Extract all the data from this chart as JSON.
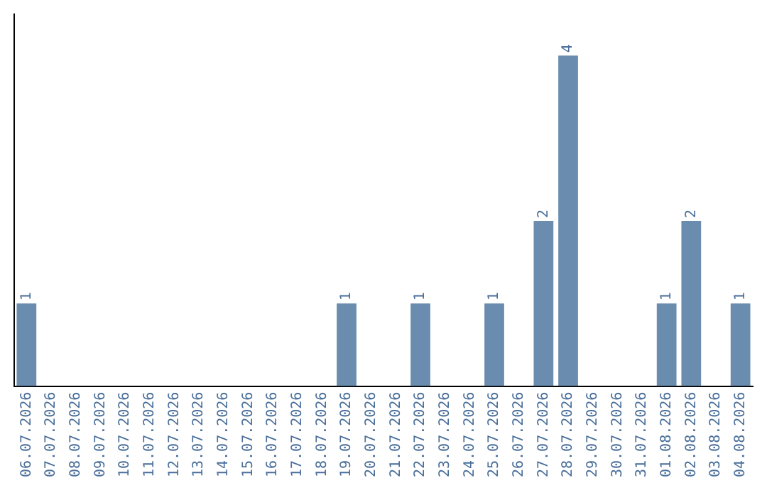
{
  "chart_data": {
    "type": "bar",
    "categories": [
      "06.07.2026",
      "07.07.2026",
      "08.07.2026",
      "09.07.2026",
      "10.07.2026",
      "11.07.2026",
      "12.07.2026",
      "13.07.2026",
      "14.07.2026",
      "15.07.2026",
      "16.07.2026",
      "17.07.2026",
      "18.07.2026",
      "19.07.2026",
      "20.07.2026",
      "21.07.2026",
      "22.07.2026",
      "23.07.2026",
      "24.07.2026",
      "25.07.2026",
      "26.07.2026",
      "27.07.2026",
      "28.07.2026",
      "29.07.2026",
      "30.07.2026",
      "31.07.2026",
      "01.08.2026",
      "02.08.2026",
      "03.08.2026",
      "04.08.2026"
    ],
    "values": [
      1,
      0,
      0,
      0,
      0,
      0,
      0,
      0,
      0,
      0,
      0,
      0,
      0,
      1,
      0,
      0,
      1,
      0,
      0,
      1,
      0,
      2,
      4,
      0,
      0,
      0,
      1,
      2,
      0,
      1
    ],
    "value_labels": [
      "1",
      null,
      null,
      null,
      null,
      null,
      null,
      null,
      null,
      null,
      null,
      null,
      null,
      "1",
      null,
      null,
      "1",
      null,
      null,
      "1",
      null,
      "2",
      "4",
      null,
      null,
      null,
      "1",
      "2",
      null,
      "1"
    ],
    "color": "#6a8cae",
    "grid": false,
    "legend": false,
    "tick_labels": "x"
  }
}
